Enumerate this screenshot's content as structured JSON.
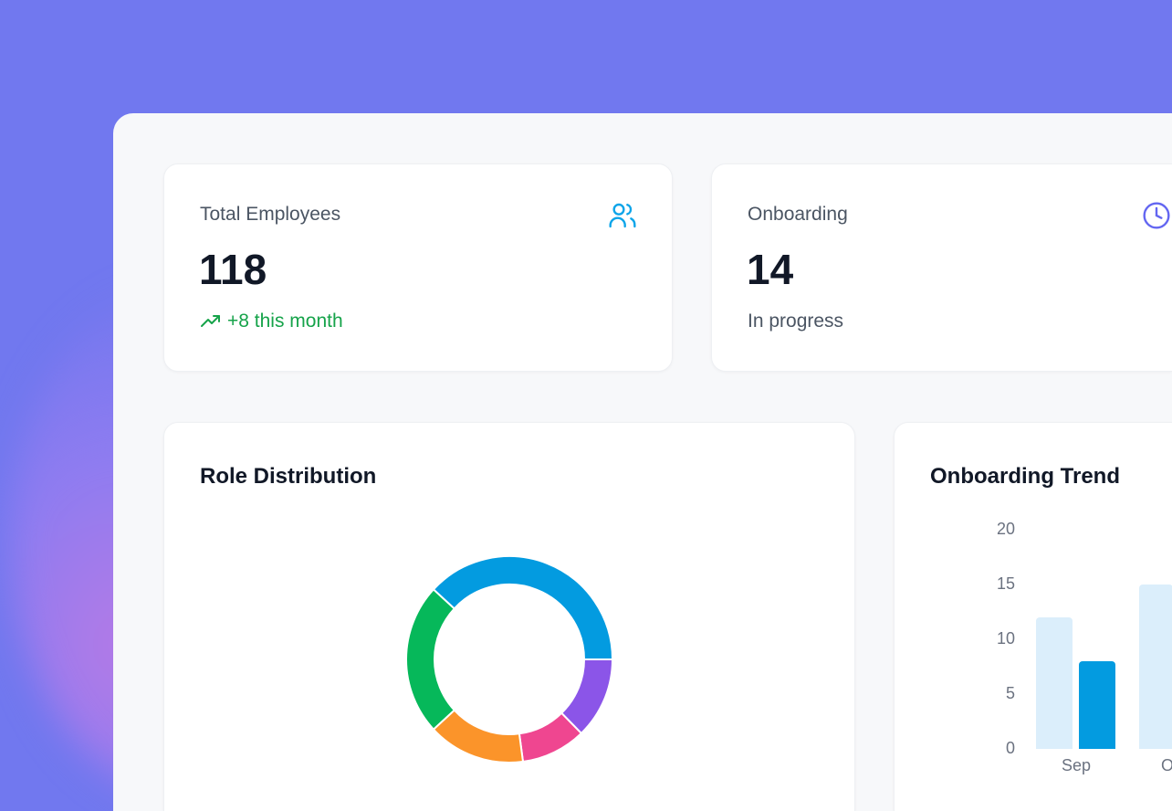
{
  "stats": [
    {
      "label": "Total Employees",
      "value": "118",
      "sub": "+8 this month",
      "icon": "users-icon",
      "trend": "up",
      "color": "#0ea5e9"
    },
    {
      "label": "Onboarding",
      "value": "14",
      "sub": "In progress",
      "icon": "clock-icon",
      "color": "#6366f1"
    }
  ],
  "role_chart": {
    "title": "Role Distribution"
  },
  "trend_chart": {
    "title": "Onboarding Trend"
  },
  "chart_data": [
    {
      "type": "pie",
      "variant": "donut",
      "title": "Role Distribution",
      "values": [
        15,
        12,
        18,
        28,
        45
      ],
      "colors": [
        "#8b55e8",
        "#ef4690",
        "#fb942a",
        "#06b85a",
        "#039be0"
      ]
    },
    {
      "type": "bar",
      "title": "Onboarding Trend",
      "categories": [
        "Sep",
        "O"
      ],
      "ylim": [
        0,
        20
      ],
      "yticks": [
        0,
        5,
        10,
        15,
        20
      ],
      "series": [
        {
          "values": [
            12,
            15
          ],
          "color": "#dbeefb"
        },
        {
          "values": [
            8,
            null
          ],
          "color": "#039be0"
        }
      ]
    }
  ]
}
